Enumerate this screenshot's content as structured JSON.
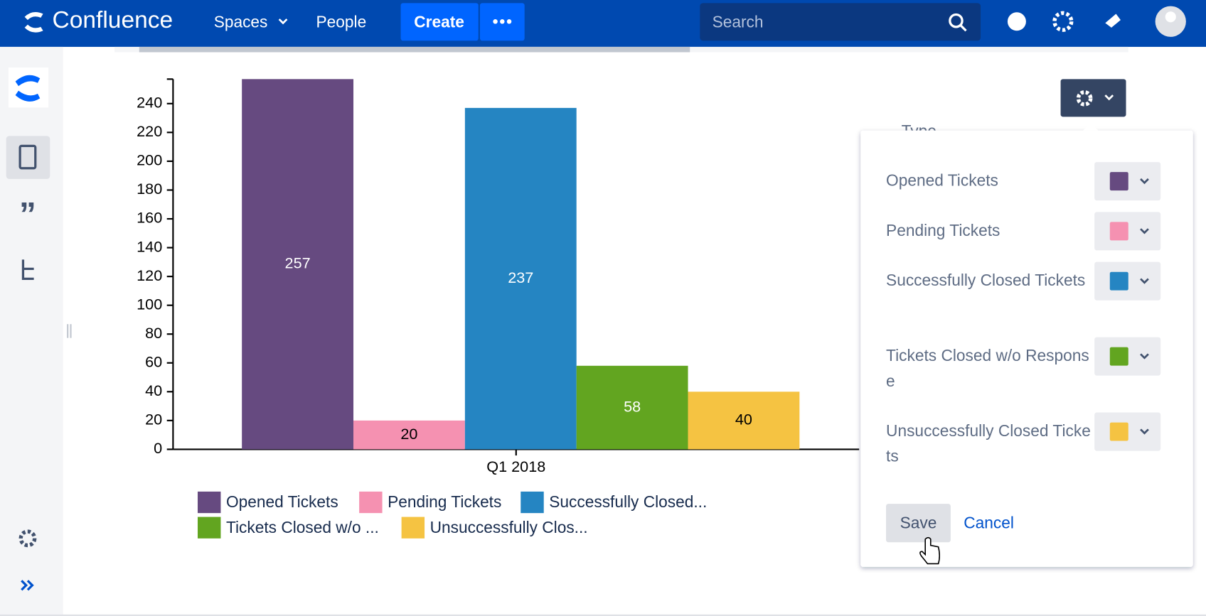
{
  "header": {
    "product": "Confluence",
    "nav": [
      "Spaces",
      "People"
    ],
    "create": "Create",
    "search_placeholder": "Search"
  },
  "chart_data": {
    "type": "bar",
    "categories": [
      "Q1 2018"
    ],
    "series": [
      {
        "name": "Opened Tickets",
        "color": "#664a80",
        "values": [
          257
        ]
      },
      {
        "name": "Pending Tickets",
        "color": "#f591b1",
        "values": [
          20
        ]
      },
      {
        "name": "Successfully Closed Tickets",
        "color": "#2585c2",
        "values": [
          237
        ]
      },
      {
        "name": "Tickets Closed w/o Response",
        "color": "#62a520",
        "values": [
          58
        ]
      },
      {
        "name": "Unsuccessfully Closed Tickets",
        "color": "#f5c342",
        "values": [
          40
        ]
      }
    ],
    "legend_labels": [
      "Opened Tickets",
      "Pending Tickets",
      "Successfully Closed...",
      "Tickets Closed w/o ...",
      "Unsuccessfully Clos..."
    ],
    "ylim": [
      0,
      257
    ],
    "yticks": [
      0,
      20,
      40,
      60,
      80,
      100,
      120,
      140,
      160,
      180,
      200,
      220,
      240
    ]
  },
  "settings_panel": {
    "hidden_label": "Type",
    "save": "Save",
    "cancel": "Cancel"
  }
}
